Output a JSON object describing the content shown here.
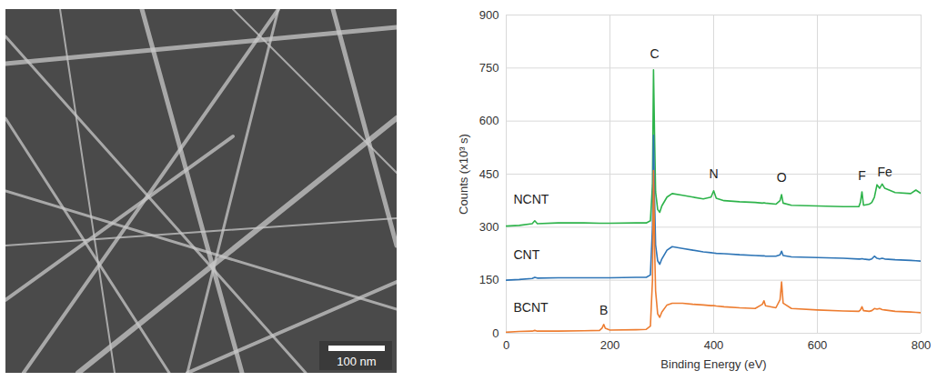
{
  "image": {
    "scale_bar_label": "100 nm"
  },
  "chart_data": {
    "type": "line",
    "x_label": "Binding Energy (eV)",
    "y_label": "Counts (x10³ s)",
    "xlim": [
      0,
      800
    ],
    "ylim": [
      0,
      900
    ],
    "xticks": [
      0,
      200,
      400,
      600,
      800
    ],
    "yticks": [
      0,
      150,
      300,
      450,
      600,
      750,
      900
    ],
    "grid": true,
    "x": [
      0,
      25,
      50,
      55,
      60,
      100,
      150,
      180,
      185,
      188,
      191,
      200,
      250,
      270,
      278,
      282,
      284,
      286,
      288,
      292,
      296,
      300,
      310,
      320,
      340,
      360,
      380,
      395,
      400,
      405,
      420,
      450,
      480,
      494,
      497,
      500,
      520,
      528,
      531,
      534,
      550,
      600,
      650,
      680,
      683,
      686,
      689,
      700,
      705,
      710,
      715,
      720,
      725,
      730,
      750,
      780,
      790,
      800
    ],
    "series": [
      {
        "name": "NCNT",
        "color": "#2db34a",
        "values": [
          303,
          305,
          310,
          318,
          310,
          312,
          312,
          311,
          311,
          311,
          311,
          311,
          312,
          312,
          318,
          420,
          745,
          560,
          400,
          350,
          342,
          360,
          385,
          395,
          390,
          385,
          380,
          385,
          403,
          382,
          375,
          372,
          370,
          368,
          369,
          368,
          365,
          375,
          392,
          368,
          362,
          360,
          358,
          358,
          370,
          400,
          362,
          365,
          370,
          385,
          420,
          410,
          422,
          410,
          398,
          395,
          405,
          395
        ]
      },
      {
        "name": "CNT",
        "color": "#2e75b6",
        "values": [
          150,
          152,
          155,
          158,
          156,
          157,
          157,
          157,
          157,
          157,
          157,
          157,
          158,
          158,
          165,
          300,
          560,
          380,
          250,
          205,
          195,
          210,
          235,
          245,
          240,
          235,
          230,
          228,
          227,
          226,
          225,
          222,
          220,
          219,
          219,
          218,
          218,
          222,
          232,
          220,
          216,
          214,
          212,
          210,
          210,
          211,
          210,
          208,
          210,
          218,
          212,
          210,
          212,
          210,
          208,
          206,
          205,
          204
        ]
      },
      {
        "name": "BCNT",
        "color": "#ed7d31",
        "values": [
          3,
          5,
          6,
          8,
          6,
          6,
          7,
          8,
          15,
          25,
          14,
          9,
          10,
          11,
          20,
          150,
          460,
          250,
          120,
          55,
          45,
          60,
          80,
          85,
          85,
          82,
          80,
          78,
          78,
          77,
          75,
          72,
          70,
          82,
          92,
          78,
          72,
          95,
          145,
          85,
          70,
          66,
          63,
          62,
          66,
          75,
          64,
          62,
          64,
          70,
          68,
          70,
          67,
          66,
          62,
          60,
          59,
          58
        ]
      }
    ],
    "annotations": [
      {
        "text": "C",
        "x": 286,
        "y": 790
      },
      {
        "text": "N",
        "x": 400,
        "y": 450
      },
      {
        "text": "O",
        "x": 531,
        "y": 440
      },
      {
        "text": "F",
        "x": 686,
        "y": 445
      },
      {
        "text": "Fe",
        "x": 730,
        "y": 455
      },
      {
        "text": "B",
        "x": 188,
        "y": 65
      }
    ]
  }
}
